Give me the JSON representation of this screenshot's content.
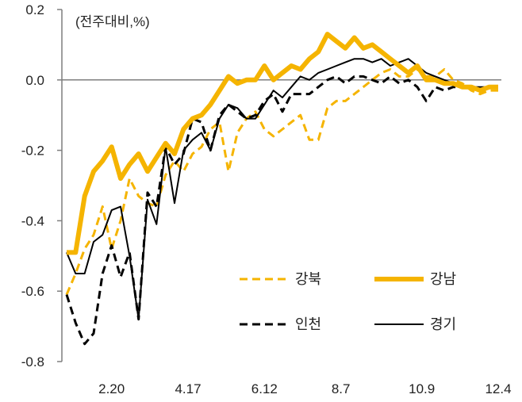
{
  "chart_data": {
    "type": "line",
    "unit_label": "(전주대비,%)",
    "ylim": [
      -0.8,
      0.2
    ],
    "yticks": [
      0.2,
      0.0,
      -0.2,
      -0.4,
      -0.6,
      -0.8
    ],
    "ytick_labels": [
      "0.2",
      "0.0",
      "-0.2",
      "-0.4",
      "-0.6",
      "-0.8"
    ],
    "xticks": [
      {
        "label": "2.20",
        "index": 5
      },
      {
        "label": "4.17",
        "index": 13.5
      },
      {
        "label": "6.12",
        "index": 22
      },
      {
        "label": "8.7",
        "index": 30.5
      },
      {
        "label": "10.9",
        "index": 39.5
      },
      {
        "label": "12.4",
        "index": 48
      }
    ],
    "x_count": 49,
    "zero_line": true,
    "legend_position": "lower-right",
    "series": [
      {
        "name": "강북",
        "color": "#f5b400",
        "dash": "dashed",
        "width": 3,
        "values": [
          -0.61,
          -0.55,
          -0.48,
          -0.44,
          -0.36,
          -0.48,
          -0.4,
          -0.28,
          -0.33,
          -0.35,
          -0.36,
          -0.27,
          -0.23,
          -0.26,
          -0.21,
          -0.19,
          -0.14,
          -0.12,
          -0.26,
          -0.15,
          -0.11,
          -0.09,
          -0.14,
          -0.16,
          -0.14,
          -0.12,
          -0.1,
          -0.17,
          -0.17,
          -0.08,
          -0.06,
          -0.06,
          -0.04,
          -0.02,
          0.0,
          0.02,
          0.03,
          0.01,
          0.01,
          0.03,
          0.01,
          0.01,
          0.03,
          0.0,
          -0.01,
          -0.03,
          -0.04,
          -0.03,
          -0.03
        ]
      },
      {
        "name": "강남",
        "color": "#f5b400",
        "dash": "solid",
        "width": 6,
        "values": [
          -0.49,
          -0.49,
          -0.33,
          -0.26,
          -0.23,
          -0.19,
          -0.28,
          -0.24,
          -0.21,
          -0.26,
          -0.22,
          -0.18,
          -0.21,
          -0.14,
          -0.11,
          -0.1,
          -0.07,
          -0.03,
          0.01,
          -0.01,
          0.0,
          0.0,
          0.04,
          0.0,
          0.02,
          0.04,
          0.03,
          0.06,
          0.08,
          0.13,
          0.11,
          0.09,
          0.12,
          0.09,
          0.1,
          0.08,
          0.06,
          0.04,
          0.02,
          0.04,
          0.0,
          0.0,
          -0.01,
          -0.01,
          -0.02,
          -0.02,
          -0.03,
          -0.02,
          -0.02
        ]
      },
      {
        "name": "인천",
        "color": "#000000",
        "dash": "dashed",
        "width": 3,
        "values": [
          -0.61,
          -0.69,
          -0.75,
          -0.72,
          -0.55,
          -0.47,
          -0.56,
          -0.49,
          -0.68,
          -0.32,
          -0.36,
          -0.19,
          -0.24,
          -0.21,
          -0.11,
          -0.12,
          -0.2,
          -0.1,
          -0.07,
          -0.09,
          -0.11,
          -0.1,
          -0.06,
          -0.04,
          -0.09,
          -0.04,
          -0.04,
          -0.04,
          -0.02,
          0.0,
          0.01,
          -0.01,
          0.01,
          0.01,
          0.0,
          -0.01,
          0.01,
          -0.01,
          0.0,
          -0.02,
          -0.06,
          -0.02,
          -0.03,
          -0.02,
          -0.02,
          -0.02,
          -0.03,
          -0.02,
          -0.02
        ]
      },
      {
        "name": "경기",
        "color": "#000000",
        "dash": "solid",
        "width": 2,
        "values": [
          -0.49,
          -0.55,
          -0.55,
          -0.46,
          -0.44,
          -0.37,
          -0.36,
          -0.5,
          -0.68,
          -0.34,
          -0.41,
          -0.19,
          -0.35,
          -0.2,
          -0.17,
          -0.15,
          -0.2,
          -0.11,
          -0.07,
          -0.08,
          -0.11,
          -0.11,
          -0.07,
          -0.03,
          -0.05,
          -0.02,
          0.01,
          0.0,
          0.02,
          0.03,
          0.04,
          0.05,
          0.06,
          0.06,
          0.05,
          0.06,
          0.04,
          0.05,
          0.06,
          0.04,
          0.02,
          0.01,
          0.0,
          -0.01,
          -0.02,
          -0.02,
          -0.02,
          -0.02,
          -0.02
        ]
      }
    ]
  }
}
